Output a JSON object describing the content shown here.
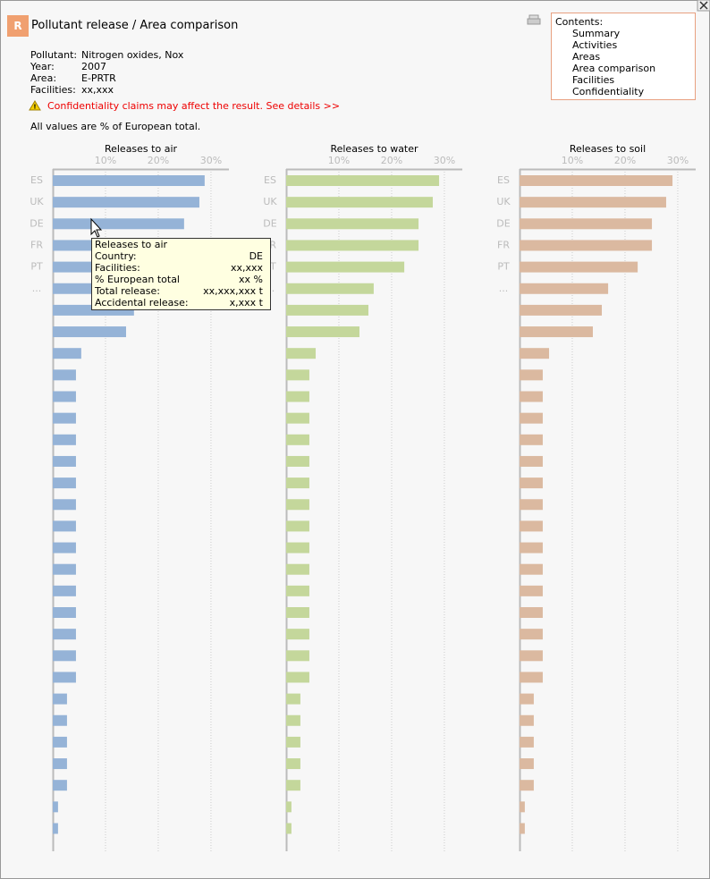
{
  "header": {
    "badge": "R",
    "title": "Pollutant release / Area comparison"
  },
  "info": [
    {
      "label": "Pollutant:",
      "value": "Nitrogen oxides, Nox"
    },
    {
      "label": "Year:",
      "value": "2007"
    },
    {
      "label": "Area:",
      "value": "E-PRTR"
    },
    {
      "label": "Facilities:",
      "value": "xx,xxx"
    }
  ],
  "warning": "Confidentiality claims may affect the result. See details >>",
  "note": "All values are % of European total.",
  "contents": {
    "title": "Contents:",
    "items": [
      "Summary",
      "Activities",
      "Areas",
      "Area comparison",
      "Facilities",
      "Confidentiality"
    ]
  },
  "tooltip": {
    "title": "Releases to air",
    "rows": [
      {
        "label": "Country:",
        "value": "DE"
      },
      {
        "label": "Facilities:",
        "value": "xx,xxx"
      },
      {
        "label": "% European total",
        "value": "xx %"
      },
      {
        "label": "Total release:",
        "value": "xx,xxx,xxx t"
      },
      {
        "label": "Accidental release:",
        "value": "x,xxx t"
      }
    ]
  },
  "chart_data": [
    {
      "type": "bar",
      "orientation": "horizontal",
      "title": "Releases to air",
      "color": "#95b3d7",
      "categories": [
        "ES",
        "UK",
        "DE",
        "FR",
        "PT",
        "...",
        null,
        null,
        null,
        null,
        null,
        null,
        null,
        null,
        null,
        null,
        null,
        null,
        null,
        null,
        null,
        null,
        null,
        null,
        null,
        null,
        null,
        null,
        null,
        null,
        null
      ],
      "values": [
        28.8,
        27.8,
        24.9,
        25,
        22.4,
        16.6,
        15.4,
        13.9,
        5.4,
        4.4,
        4.4,
        4.4,
        4.4,
        4.4,
        4.4,
        4.4,
        4.4,
        4.4,
        4.4,
        4.4,
        4.4,
        4.4,
        4.4,
        4.4,
        2.7,
        2.7,
        2.7,
        2.7,
        2.7,
        1.0,
        1.0
      ],
      "xlim": [
        0,
        33.4
      ],
      "xticks": [
        {
          "value": 10,
          "label": "10%"
        },
        {
          "value": 20,
          "label": "20%"
        },
        {
          "value": 30,
          "label": "30%"
        }
      ],
      "grid": true
    },
    {
      "type": "bar",
      "orientation": "horizontal",
      "title": "Releases to water",
      "color": "#c4d79b",
      "categories": [
        "ES",
        "UK",
        "DE",
        "FR",
        "PT",
        "...",
        null,
        null,
        null,
        null,
        null,
        null,
        null,
        null,
        null,
        null,
        null,
        null,
        null,
        null,
        null,
        null,
        null,
        null,
        null,
        null,
        null,
        null,
        null,
        null,
        null
      ],
      "values": [
        29.0,
        27.8,
        25.1,
        25.1,
        22.4,
        16.6,
        15.6,
        13.9,
        5.6,
        4.4,
        4.4,
        4.4,
        4.4,
        4.4,
        4.4,
        4.4,
        4.4,
        4.4,
        4.4,
        4.4,
        4.4,
        4.4,
        4.4,
        4.4,
        2.7,
        2.7,
        2.7,
        2.7,
        2.7,
        1.0,
        1.0
      ],
      "xlim": [
        0,
        33.4
      ],
      "xticks": [
        {
          "value": 10,
          "label": "10%"
        },
        {
          "value": 20,
          "label": "20%"
        },
        {
          "value": 30,
          "label": "30%"
        }
      ],
      "grid": true
    },
    {
      "type": "bar",
      "orientation": "horizontal",
      "title": "Releases to soil",
      "color": "#dbb9a0",
      "categories": [
        "ES",
        "UK",
        "DE",
        "FR",
        "PT",
        "...",
        null,
        null,
        null,
        null,
        null,
        null,
        null,
        null,
        null,
        null,
        null,
        null,
        null,
        null,
        null,
        null,
        null,
        null,
        null,
        null,
        null,
        null,
        null,
        null,
        null
      ],
      "values": [
        29.0,
        27.8,
        25.1,
        25.1,
        22.4,
        16.8,
        15.6,
        13.9,
        5.6,
        4.4,
        4.4,
        4.4,
        4.4,
        4.4,
        4.4,
        4.4,
        4.4,
        4.4,
        4.4,
        4.4,
        4.4,
        4.4,
        4.4,
        4.4,
        2.7,
        2.7,
        2.7,
        2.7,
        2.7,
        1.0,
        1.0
      ],
      "xlim": [
        0,
        33.4
      ],
      "xticks": [
        {
          "value": 10,
          "label": "10%"
        },
        {
          "value": 20,
          "label": "20%"
        },
        {
          "value": 30,
          "label": "30%"
        }
      ],
      "grid": true
    }
  ]
}
